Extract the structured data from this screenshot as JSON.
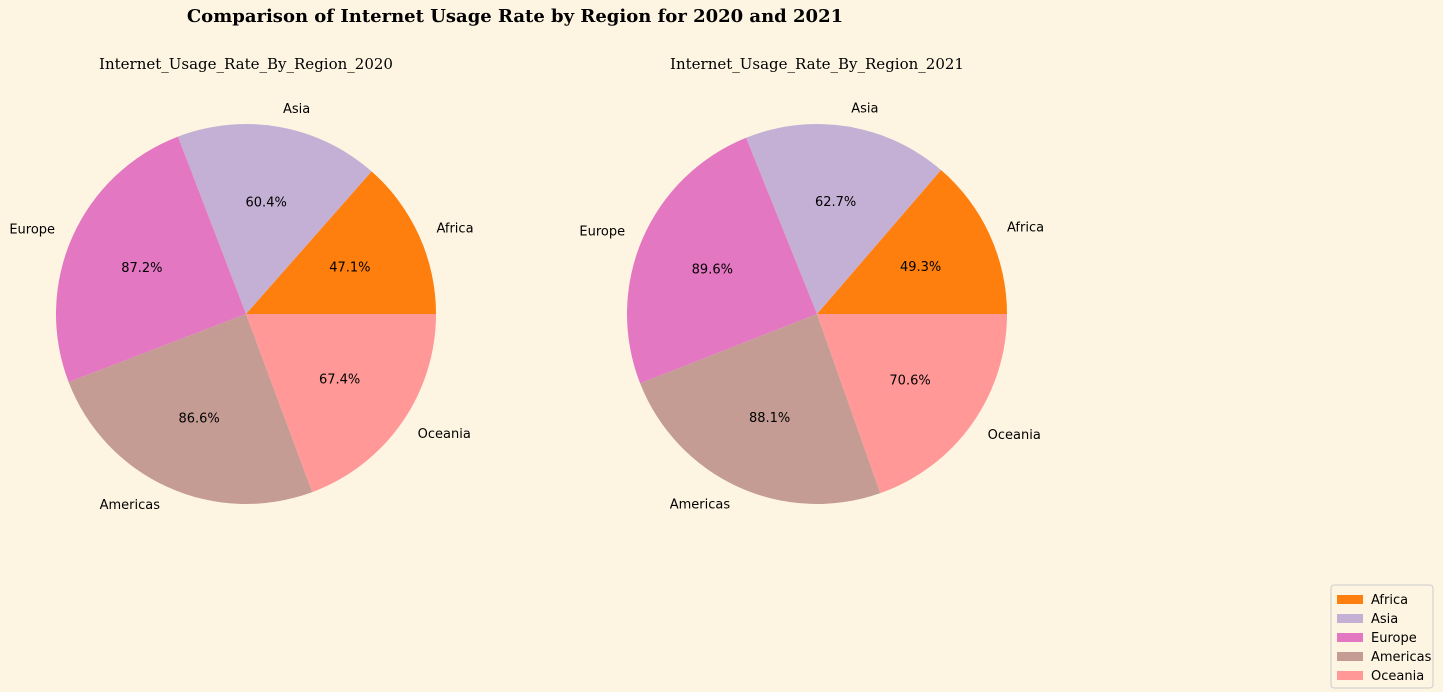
{
  "title": "Comparison of Internet Usage Rate by Region for 2020 and 2021",
  "colors": {
    "background": "#fdf5e2",
    "Africa": "#ff7f0e",
    "Asia": "#c5b0d5",
    "Europe": "#e377c2",
    "Americas": "#c49c94",
    "Oceania": "#ff9896"
  },
  "chart_data": [
    {
      "type": "pie",
      "title": "Internet_Usage_Rate_By_Region_2020",
      "categories": [
        "Africa",
        "Asia",
        "Europe",
        "Americas",
        "Oceania"
      ],
      "values": [
        47.1,
        60.4,
        87.2,
        86.6,
        67.4
      ],
      "labels": [
        "47.1%",
        "60.4%",
        "87.2%",
        "86.6%",
        "67.4%"
      ],
      "start_angle_deg": 0,
      "direction": "counterclockwise"
    },
    {
      "type": "pie",
      "title": "Internet_Usage_Rate_By_Region_2021",
      "categories": [
        "Africa",
        "Asia",
        "Europe",
        "Americas",
        "Oceania"
      ],
      "values": [
        49.3,
        62.7,
        89.6,
        88.1,
        70.6
      ],
      "labels": [
        "49.3%",
        "62.7%",
        "89.6%",
        "88.1%",
        "70.6%"
      ],
      "start_angle_deg": 0,
      "direction": "counterclockwise"
    }
  ],
  "legend": {
    "placement": "bottom-right",
    "entries": [
      "Africa",
      "Asia",
      "Europe",
      "Americas",
      "Oceania"
    ]
  }
}
